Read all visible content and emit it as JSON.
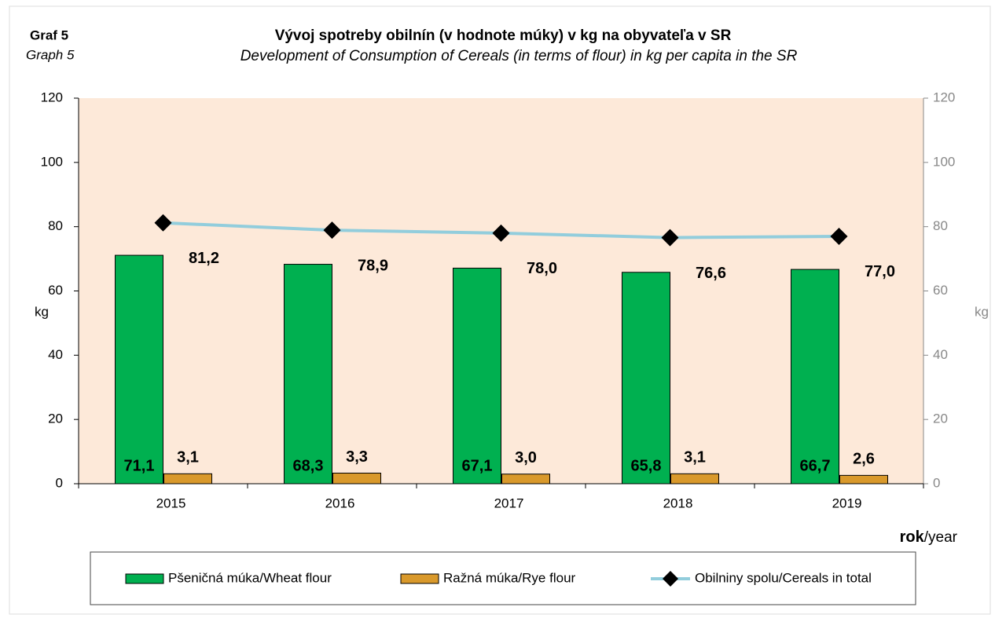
{
  "chart_data": {
    "type": "bar_line",
    "label_cz": "Graf 5",
    "label_en": "Graph 5",
    "title": "Vývoj spotreby obilnín (v hodnote múky) v kg na obyvateľa v SR",
    "subtitle": "Development of Consumption  of Cereals (in terms of flour) in kg per capita in the SR",
    "ylabel": "kg",
    "y2label": "kg",
    "xlabel_bold": "rok",
    "xlabel_rest": "/year",
    "categories": [
      "2015",
      "2016",
      "2017",
      "2018",
      "2019"
    ],
    "ylim": [
      0,
      120
    ],
    "yticks": [
      0,
      20,
      40,
      60,
      80,
      100,
      120
    ],
    "y2lim": [
      0,
      120
    ],
    "y2ticks": [
      0,
      20,
      40,
      60,
      80,
      100,
      120
    ],
    "series": [
      {
        "name": "Pšeničná múka/Wheat flour",
        "color": "#00b050",
        "kind": "bar",
        "values": [
          71.1,
          68.3,
          67.1,
          65.8,
          66.7
        ],
        "value_labels": [
          "71,1",
          "68,3",
          "67,1",
          "65,8",
          "66,7"
        ]
      },
      {
        "name": "Ražná múka/Rye flour",
        "color": "#d9992b",
        "kind": "bar",
        "values": [
          3.1,
          3.3,
          3.0,
          3.1,
          2.6
        ],
        "value_labels": [
          "3,1",
          "3,3",
          "3,0",
          "3,1",
          "2,6"
        ]
      },
      {
        "name": "Obilniny spolu/Cereals in total",
        "color": "#92cddc",
        "kind": "line",
        "values": [
          81.2,
          78.9,
          78.0,
          76.6,
          77.0
        ],
        "value_labels": [
          "81,2",
          "78,9",
          "78,0",
          "76,6",
          "77,0"
        ]
      }
    ]
  }
}
